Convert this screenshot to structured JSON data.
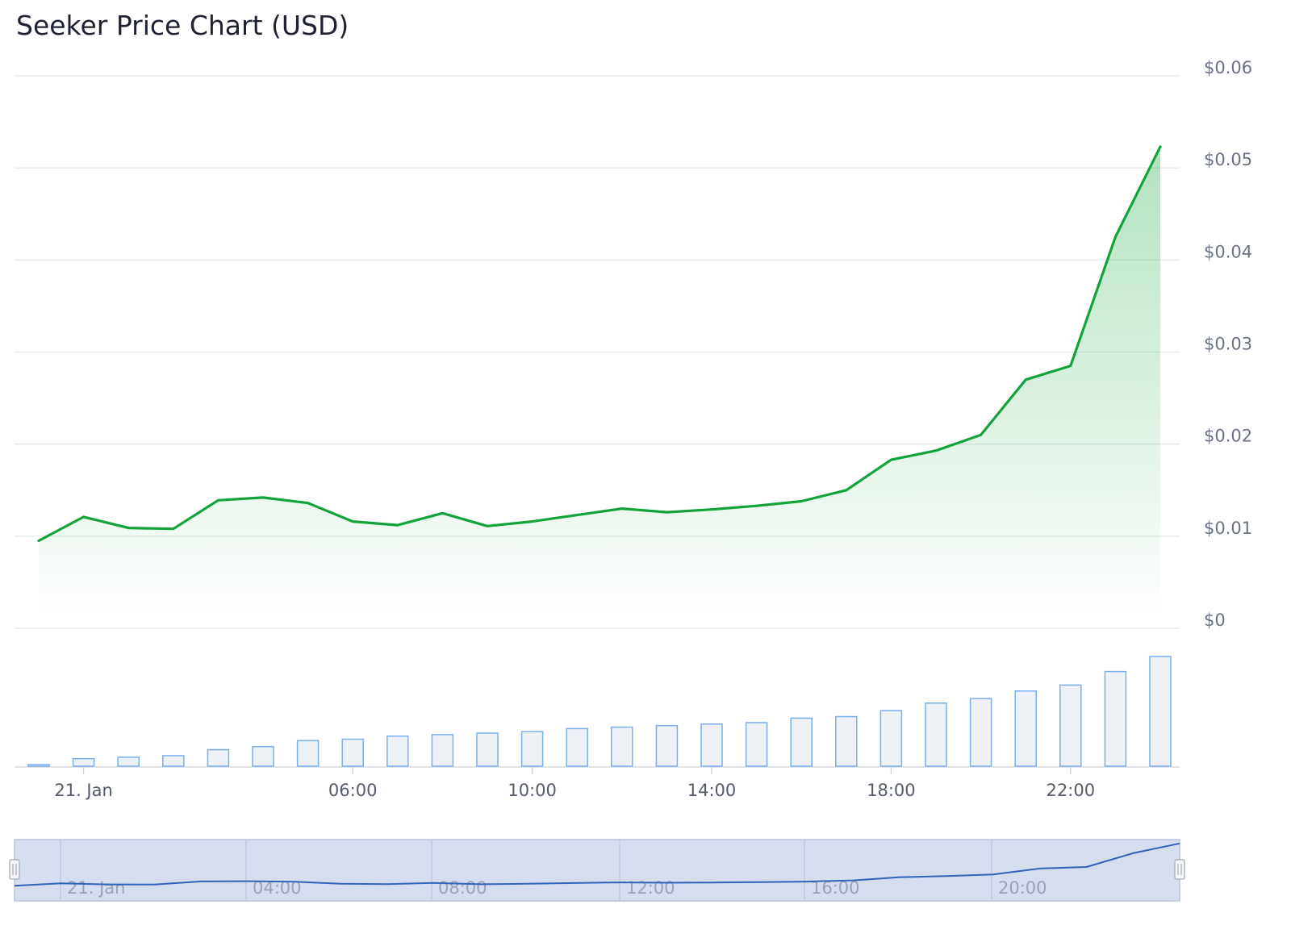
{
  "chart_data": {
    "type": "area",
    "title": "Seeker Price Chart (USD)",
    "series": [
      {
        "type": "area",
        "values": [
          0.0095,
          0.0121,
          0.0109,
          0.0108,
          0.0139,
          0.0142,
          0.0136,
          0.0116,
          0.0112,
          0.0125,
          0.0111,
          0.0116,
          0.0123,
          0.013,
          0.0126,
          0.0129,
          0.0133,
          0.0138,
          0.015,
          0.0183,
          0.0193,
          0.021,
          0.027,
          0.0285,
          0.0425,
          0.0523
        ]
      },
      {
        "type": "bar",
        "values": [
          1,
          5,
          6,
          7,
          11,
          13,
          17,
          18,
          20,
          21,
          22,
          23,
          25,
          26,
          27,
          28,
          29,
          32,
          33,
          37,
          42,
          45,
          50,
          54,
          63,
          73
        ]
      }
    ],
    "x_start": "21. Jan 00:00",
    "x_interval_hours": 1,
    "y_ticks": [
      "$0",
      "$0.01",
      "$0.02",
      "$0.03",
      "$0.04",
      "$0.05",
      "$0.06"
    ],
    "ylim": [
      0,
      0.06
    ],
    "x_ticks": [
      "21. Jan",
      "06:00",
      "10:00",
      "14:00",
      "18:00",
      "22:00"
    ],
    "navigator_ticks": [
      "21. Jan",
      "04:00",
      "08:00",
      "12:00",
      "16:00",
      "20:00"
    ],
    "colors": {
      "line": "#12a33a",
      "area_top": "#12a33a",
      "bar_fill": "#eef1f5",
      "bar_stroke": "#7aaef0",
      "navigator_bg": "#d5ddef",
      "navigator_line": "#3163b8",
      "grid": "#e6e8ec"
    },
    "grid": true
  }
}
